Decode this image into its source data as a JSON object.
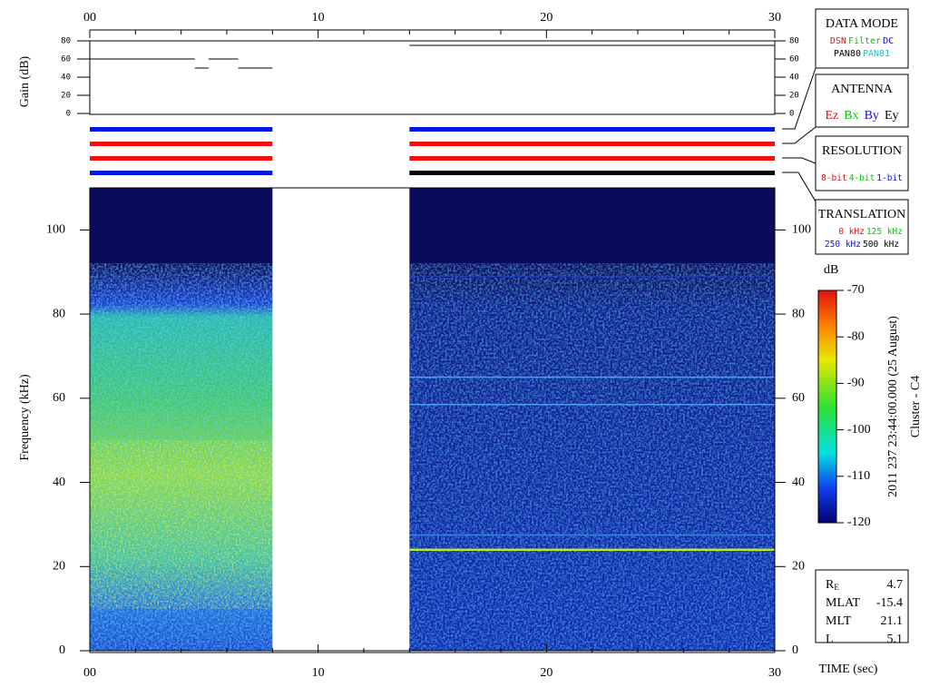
{
  "chart_data": {
    "type": "spectrogram",
    "xlabel": "TIME (sec)",
    "ylabel": "Frequency (kHz)",
    "xlim": [
      0,
      30
    ],
    "xticks": [
      {
        "value": 0,
        "label": "00"
      },
      10,
      20,
      30
    ],
    "ylim": [
      0,
      110
    ],
    "yticks": [
      0,
      20,
      40,
      60,
      80,
      100
    ],
    "data_blocks": [
      [
        0,
        8
      ],
      [
        14,
        30
      ]
    ],
    "gain": {
      "ylabel": "Gain (dB)",
      "ylim": [
        0,
        80
      ],
      "yticks": [
        0,
        20,
        40,
        60,
        80
      ],
      "segments": [
        {
          "x": [
            0,
            4.6
          ],
          "value": 60
        },
        {
          "x": [
            4.6,
            5.2
          ],
          "value": 50
        },
        {
          "x": [
            5.2,
            6.5
          ],
          "value": 60
        },
        {
          "x": [
            6.5,
            8
          ],
          "value": 50
        },
        {
          "x": [
            14,
            30
          ],
          "value": 75
        }
      ]
    },
    "mode_bars": [
      {
        "x": [
          0,
          8
        ],
        "colors": [
          "#0018e0",
          "#f01010",
          "#f01010",
          "#0018e0"
        ]
      },
      {
        "x": [
          14,
          30
        ],
        "colors": [
          "#0018e0",
          "#f01010",
          "#f01010",
          "#000000"
        ]
      }
    ],
    "colorbar": {
      "label": "dB",
      "lim": [
        -70,
        -120
      ],
      "ticks": [
        -70,
        -80,
        -90,
        -100,
        -110,
        -120
      ]
    },
    "timestamp": "2011 237 23:44:00.000 (25 August)",
    "spacecraft": "Cluster - C4"
  },
  "panels": {
    "data_mode": {
      "title": "DATA MODE",
      "lines": [
        [
          {
            "text": "DSN",
            "color": "#e01010"
          },
          {
            "text": "Filter",
            "color": "#10c010"
          },
          {
            "text": "DC",
            "color": "#1010e0"
          }
        ],
        [
          {
            "text": "PAN80",
            "color": "#000000"
          },
          {
            "text": "PAN81",
            "color": "#10c8c8"
          }
        ]
      ]
    },
    "antenna": {
      "title": "ANTENNA",
      "lines": [
        [
          {
            "text": "Ez",
            "color": "#e01010"
          },
          {
            "text": "Bx",
            "color": "#10c010"
          },
          {
            "text": "By",
            "color": "#1010e0"
          },
          {
            "text": "Ey",
            "color": "#000000"
          }
        ]
      ]
    },
    "resolution": {
      "title": "RESOLUTION",
      "lines": [
        [
          {
            "text": "8-bit",
            "color": "#e01010"
          },
          {
            "text": "4-bit",
            "color": "#10c010"
          },
          {
            "text": "1-bit",
            "color": "#1010e0"
          }
        ]
      ]
    },
    "translation": {
      "title": "TRANSLATION",
      "lines": [
        [
          {
            "text": "0 kHz",
            "color": "#e01010"
          },
          {
            "text": "125 kHz",
            "color": "#10c010"
          }
        ],
        [
          {
            "text": "250 kHz",
            "color": "#1010e0"
          },
          {
            "text": "500 kHz",
            "color": "#000000"
          }
        ]
      ]
    }
  },
  "info": [
    {
      "label": "R",
      "sub": "E",
      "value": "4.7"
    },
    {
      "label": "MLAT",
      "value": "-15.4"
    },
    {
      "label": "MLT",
      "value": "21.1"
    },
    {
      "label": "L",
      "value": "5.1"
    }
  ]
}
